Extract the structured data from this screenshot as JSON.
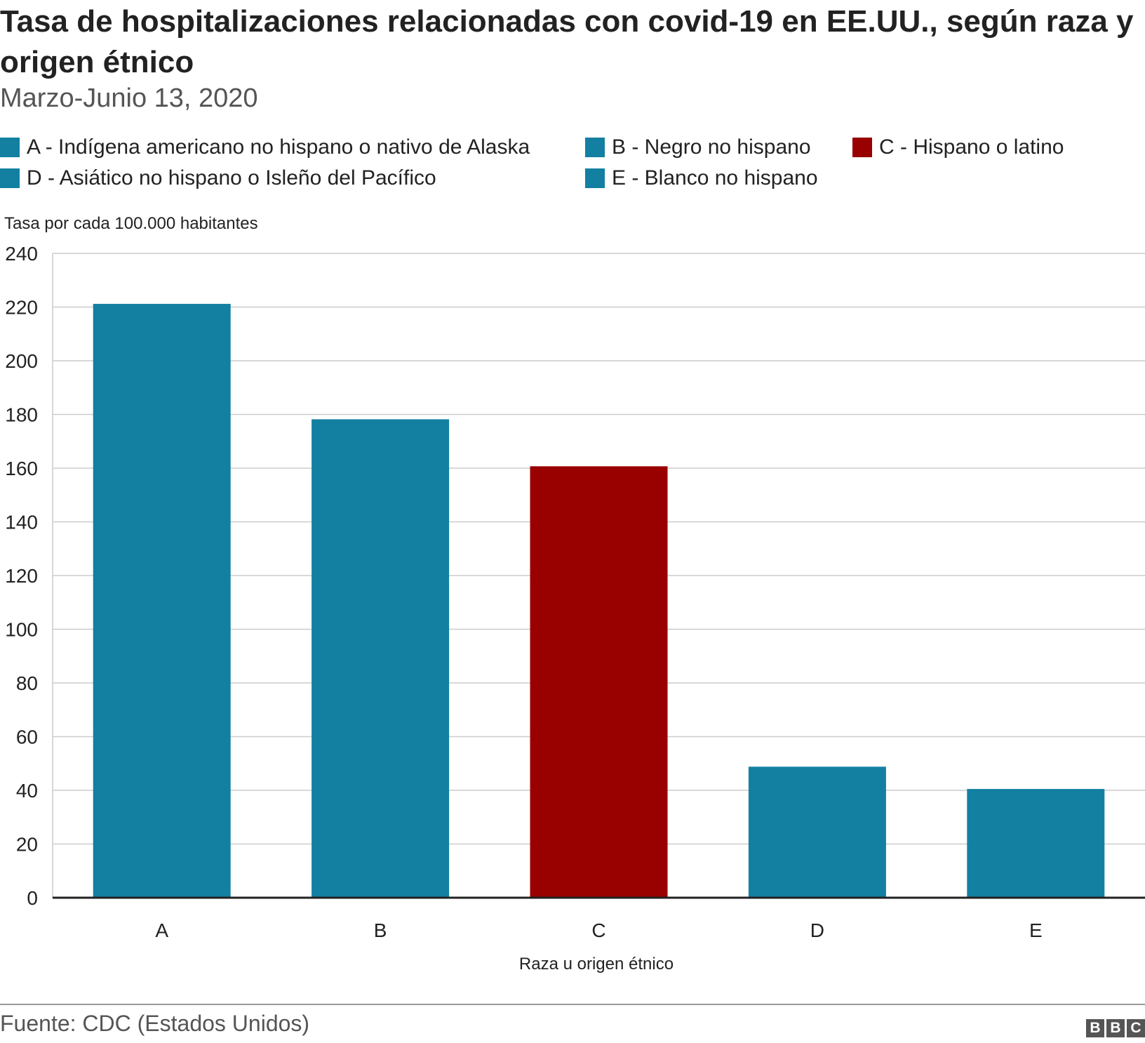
{
  "title": "Tasa de hospitalizaciones relacionadas con covid-19 en EE.UU., según raza y origen étnico",
  "subtitle": "Marzo-Junio 13, 2020",
  "legend": [
    {
      "label": "A - Indígena americano no hispano o nativo de Alaska",
      "color": "#1380a1"
    },
    {
      "label": "B - Negro no hispano",
      "color": "#1380a1"
    },
    {
      "label": "C - Hispano o latino",
      "color": "#990000"
    },
    {
      "label": "D - Asiático no hispano o Isleño del Pacífico",
      "color": "#1380a1"
    },
    {
      "label": "E - Blanco no hispano",
      "color": "#1380a1"
    }
  ],
  "chart_data": {
    "type": "bar",
    "title": "Tasa de hospitalizaciones relacionadas con covid-19 en EE.UU., según raza y origen étnico",
    "subtitle": "Marzo-Junio 13, 2020",
    "categories": [
      "A",
      "B",
      "C",
      "D",
      "E"
    ],
    "values": [
      221.2,
      178.2,
      160.7,
      48.8,
      40.5
    ],
    "colors": [
      "#1380a1",
      "#1380a1",
      "#990000",
      "#1380a1",
      "#1380a1"
    ],
    "ylabel": "Tasa por cada 100.000 habitantes",
    "xlabel": "Raza u origen étnico",
    "ylim": [
      0,
      240
    ],
    "yticks": [
      0,
      20,
      40,
      60,
      80,
      100,
      120,
      140,
      160,
      180,
      200,
      220,
      240
    ],
    "grid": true
  },
  "footer": {
    "source": "Fuente: CDC (Estados Unidos)",
    "logo_letters": [
      "B",
      "B",
      "C"
    ]
  }
}
